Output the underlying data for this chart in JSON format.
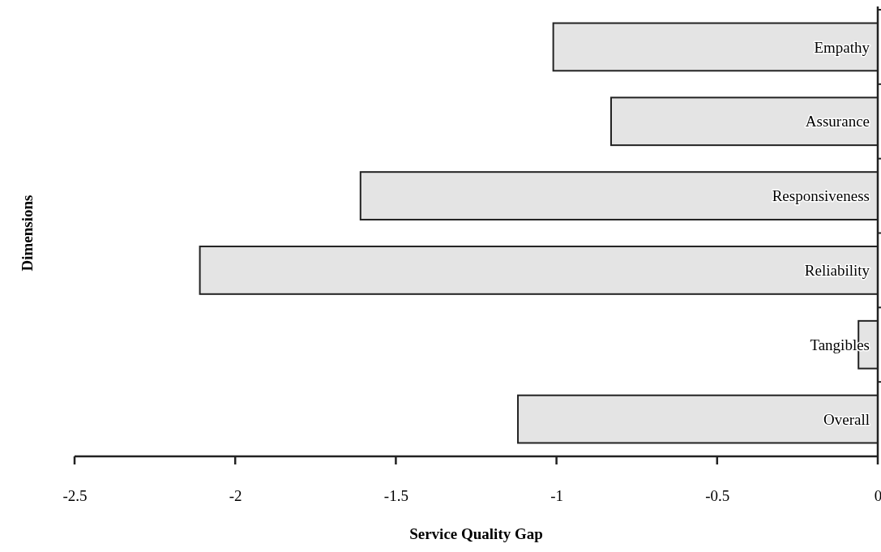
{
  "chart_data": {
    "type": "bar",
    "orientation": "horizontal",
    "xlabel": "Service Quality Gap",
    "ylabel": "Dimensions",
    "categories": [
      "Empathy",
      "Assurance",
      "Responsiveness",
      "Reliability",
      "Tangibles",
      "Overall"
    ],
    "values": [
      -1.01,
      -0.83,
      -1.61,
      -2.11,
      -0.06,
      -1.12
    ],
    "color": "#e4e4e4",
    "xlim": [
      -2.5,
      0
    ],
    "xticks": [
      -2.5,
      -2,
      -1.5,
      -1,
      -0.5,
      0
    ],
    "grid": false
  }
}
